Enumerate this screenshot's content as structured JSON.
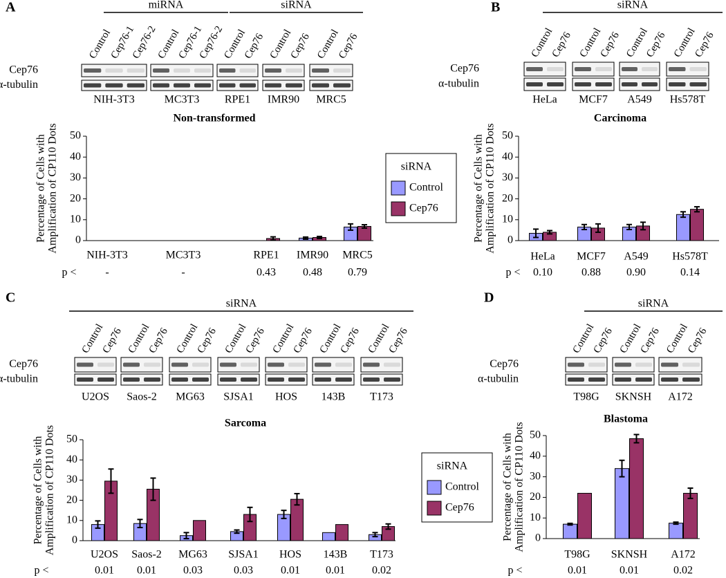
{
  "chart_data": [
    {
      "type": "bar",
      "panel": "A",
      "title": "Non-transformed",
      "ylabel": [
        "Percentage of Cells with",
        "Amplification of CP110 Dots"
      ],
      "categories": [
        "NIH-3T3",
        "MC3T3",
        "RPE1",
        "IMR90",
        "MRC5"
      ],
      "series": [
        {
          "name": "Control",
          "color": "#9999ff",
          "values": [
            0,
            0,
            0,
            1.2,
            6.5
          ],
          "errors": [
            0,
            0,
            0,
            0.5,
            1.5
          ]
        },
        {
          "name": "Cep76",
          "color": "#993366",
          "values": [
            0,
            0,
            1,
            1.5,
            6.8
          ],
          "errors": [
            0,
            0,
            0.8,
            0.5,
            0.8
          ]
        }
      ],
      "ylim": [
        0,
        50
      ],
      "yticks": [
        0,
        10,
        20,
        30,
        40,
        50
      ],
      "p_label": "p <",
      "p_values": [
        "-",
        "-",
        "0.43",
        "0.48",
        "0.79"
      ],
      "legend": {
        "title": "siRNA"
      },
      "blot": {
        "groups": [
          "miRNA",
          "siRNA"
        ],
        "lanes": [
          "Control",
          "Cep76-1",
          "Cep76-2",
          "Control",
          "Cep76-1",
          "Cep76-2",
          "Control",
          "Cep76",
          "Control",
          "Cep76",
          "Control",
          "Cep76"
        ],
        "rows": [
          "Cep76",
          "α-tubulin"
        ],
        "lines": [
          "NIH-3T3",
          "MC3T3",
          "RPE1",
          "IMR90",
          "MRC5"
        ]
      }
    },
    {
      "type": "bar",
      "panel": "B",
      "title": "Carcinoma",
      "ylabel": [
        "Percentage of Cells with",
        "Amplification of CP110 Dots"
      ],
      "categories": [
        "HeLa",
        "MCF7",
        "A549",
        "Hs578T"
      ],
      "series": [
        {
          "color": "#9999ff",
          "values": [
            3.5,
            6.5,
            6.5,
            12.5
          ],
          "errors": [
            2,
            1.2,
            1.2,
            1.3
          ]
        },
        {
          "color": "#993366",
          "values": [
            4,
            6,
            7,
            15
          ],
          "errors": [
            0.8,
            2,
            1.8,
            1.2
          ]
        }
      ],
      "ylim": [
        0,
        50
      ],
      "yticks": [
        0,
        10,
        20,
        30,
        40,
        50
      ],
      "p_label": "p <",
      "p_values": [
        "0.10",
        "0.88",
        "0.90",
        "0.14"
      ],
      "blot": {
        "groups": [
          "siRNA"
        ],
        "lanes": [
          "Control",
          "Cep76",
          "Control",
          "Cep76",
          "Control",
          "Cep76",
          "Control",
          "Cep76"
        ],
        "rows": [
          "Cep76",
          "α-tubulin"
        ],
        "lines": [
          "HeLa",
          "MCF7",
          "A549",
          "Hs578T"
        ]
      }
    },
    {
      "type": "bar",
      "panel": "C",
      "title": "Sarcoma",
      "ylabel": [
        "Percentage of Cells with",
        "Amplification of CP110 Dots"
      ],
      "categories": [
        "U2OS",
        "Saos-2",
        "MG63",
        "SJSA1",
        "HOS",
        "143B",
        "T173"
      ],
      "series": [
        {
          "name": "Control",
          "color": "#9999ff",
          "values": [
            8,
            8.5,
            2.5,
            4.5,
            13,
            4,
            3
          ],
          "errors": [
            1.8,
            2,
            1.5,
            0.8,
            2,
            0,
            1
          ]
        },
        {
          "name": "Cep76",
          "color": "#993366",
          "values": [
            29.5,
            25.5,
            10,
            13,
            20.5,
            8,
            7
          ],
          "errors": [
            6,
            5.5,
            0,
            3.5,
            2.8,
            0,
            1.3
          ]
        }
      ],
      "ylim": [
        0,
        50
      ],
      "yticks": [
        0,
        10,
        20,
        30,
        40,
        50
      ],
      "p_label": "p <",
      "p_values": [
        "0.01",
        "0.01",
        "0.03",
        "0.03",
        "0.01",
        "0.01",
        "0.02"
      ],
      "legend": {
        "title": "siRNA"
      },
      "blot": {
        "groups": [
          "siRNA"
        ],
        "lanes": [
          "Control",
          "Cep76",
          "Control",
          "Cep76",
          "Control",
          "Cep76",
          "Control",
          "Cep76",
          "Control",
          "Cep76",
          "Control",
          "Cep76",
          "Control",
          "Cep76"
        ],
        "rows": [
          "Cep76",
          "α-tubulin"
        ],
        "lines": [
          "U2OS",
          "Saos-2",
          "MG63",
          "SJSA1",
          "HOS",
          "143B",
          "T173"
        ]
      }
    },
    {
      "type": "bar",
      "panel": "D",
      "title": "Blastoma",
      "ylabel": [
        "Percentage of Cells with",
        "Amplification of CP110 Dots"
      ],
      "categories": [
        "T98G",
        "SKNSH",
        "A172"
      ],
      "series": [
        {
          "color": "#9999ff",
          "values": [
            7,
            34,
            7.5
          ],
          "errors": [
            0.4,
            4,
            0.5
          ]
        },
        {
          "color": "#993366",
          "values": [
            22,
            48.5,
            22
          ],
          "errors": [
            0,
            2,
            2.5
          ]
        }
      ],
      "ylim": [
        0,
        50
      ],
      "yticks": [
        0,
        10,
        20,
        30,
        40,
        50
      ],
      "p_label": "p <",
      "p_values": [
        "0.01",
        "0.01",
        "0.02"
      ],
      "blot": {
        "groups": [
          "siRNA"
        ],
        "lanes": [
          "Control",
          "Cep76",
          "Control",
          "Cep76",
          "Control",
          "Cep76"
        ],
        "rows": [
          "Cep76",
          "α-tubulin"
        ],
        "lines": [
          "T98G",
          "SKNSH",
          "A172"
        ]
      }
    }
  ]
}
